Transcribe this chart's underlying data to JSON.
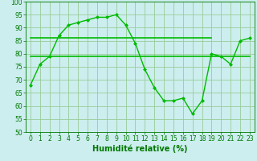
{
  "line1": {
    "x": [
      0,
      1,
      2,
      3,
      4,
      5,
      6,
      7,
      8,
      9,
      10,
      11,
      12,
      13,
      14,
      15,
      16,
      17,
      18,
      19,
      20,
      21,
      22,
      23
    ],
    "y": [
      68,
      76,
      79,
      87,
      91,
      92,
      93,
      94,
      94,
      95,
      91,
      84,
      74,
      67,
      62,
      62,
      63,
      57,
      62,
      80,
      79,
      76,
      85,
      86
    ],
    "color": "#00bb00",
    "linewidth": 1.0,
    "marker": "D",
    "markersize": 2.0
  },
  "line2": {
    "x": [
      0,
      23
    ],
    "y": [
      79,
      79
    ],
    "color": "#00bb00",
    "linewidth": 1.2
  },
  "line3": {
    "x": [
      0,
      19
    ],
    "y": [
      86,
      86
    ],
    "color": "#00bb00",
    "linewidth": 1.2
  },
  "background_color": "#cceeee",
  "grid_color": "#99cc99",
  "xlabel": "Humidité relative (%)",
  "xlabel_color": "#007700",
  "xlabel_fontsize": 7,
  "xlim": [
    -0.5,
    23.5
  ],
  "ylim": [
    50,
    100
  ],
  "yticks": [
    50,
    55,
    60,
    65,
    70,
    75,
    80,
    85,
    90,
    95,
    100
  ],
  "xticks": [
    0,
    1,
    2,
    3,
    4,
    5,
    6,
    7,
    8,
    9,
    10,
    11,
    12,
    13,
    14,
    15,
    16,
    17,
    18,
    19,
    20,
    21,
    22,
    23
  ],
  "tick_fontsize": 5.5,
  "tick_color": "#007700"
}
